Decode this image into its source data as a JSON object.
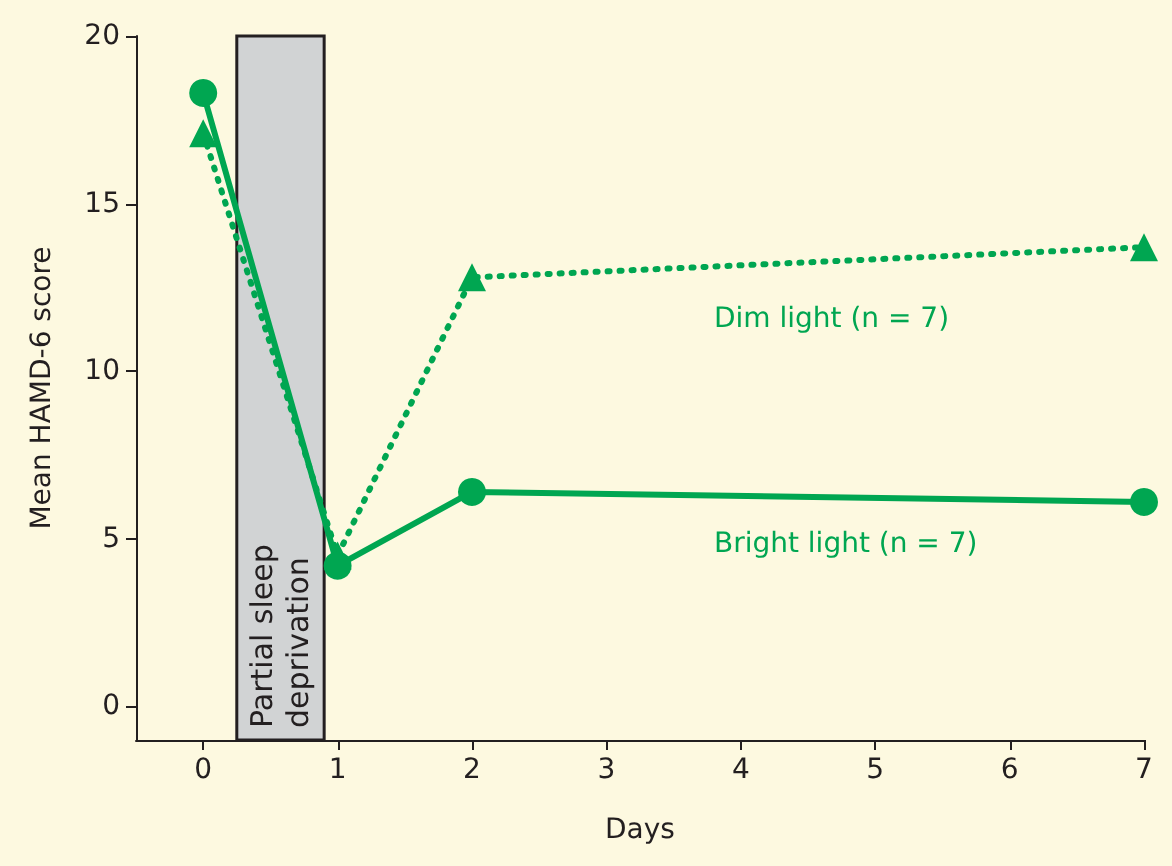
{
  "chart_data": {
    "type": "line",
    "xlabel": "Days",
    "ylabel": "Mean HAMD-6 score",
    "xlim": [
      -0.5,
      7
    ],
    "xticks": [
      0,
      1,
      2,
      3,
      4,
      5,
      6,
      7
    ],
    "ylim": [
      -1,
      20
    ],
    "yticks": [
      0,
      5,
      10,
      15,
      20
    ],
    "x": [
      0,
      1,
      2,
      7
    ],
    "series": [
      {
        "name": "Bright light (n = 7)",
        "color": "#00a651",
        "values": [
          18.3,
          4.2,
          6.4,
          6.1
        ],
        "marker": "circle",
        "line_style": "solid"
      },
      {
        "name": "Dim light (n = 7)",
        "color": "#00a651",
        "values": [
          17.1,
          4.5,
          12.8,
          13.7
        ],
        "marker": "triangle",
        "line_style": "dotted"
      }
    ],
    "bands": [
      {
        "axis": "x",
        "from": 0.25,
        "to": 0.9,
        "label": "Partial sleep\ndeprivation",
        "color": "#d1d3d4"
      }
    ],
    "grid": false,
    "legend": false
  }
}
